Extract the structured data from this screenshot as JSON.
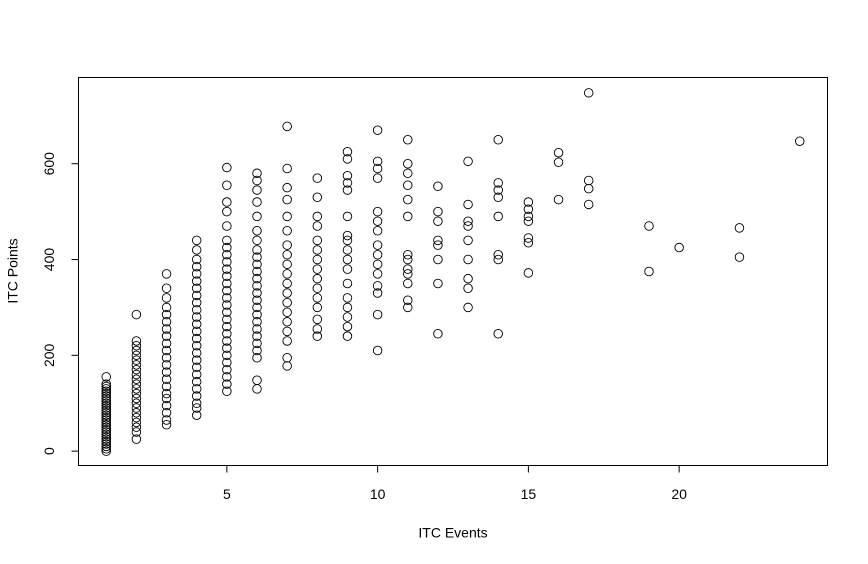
{
  "chart_data": {
    "type": "scatter",
    "x_label": "ITC Events",
    "y_label": "ITC Points",
    "x": [
      1,
      1,
      1,
      1,
      1,
      1,
      1,
      1,
      1,
      1,
      1,
      1,
      1,
      1,
      1,
      1,
      1,
      1,
      1,
      1,
      1,
      1,
      1,
      1,
      1,
      1,
      1,
      1,
      1,
      1,
      2,
      2,
      2,
      2,
      2,
      2,
      2,
      2,
      2,
      2,
      2,
      2,
      2,
      2,
      2,
      2,
      2,
      2,
      2,
      2,
      2,
      2,
      3,
      3,
      3,
      3,
      3,
      3,
      3,
      3,
      3,
      3,
      3,
      3,
      3,
      3,
      3,
      3,
      3,
      3,
      3,
      3,
      3,
      4,
      4,
      4,
      4,
      4,
      4,
      4,
      4,
      4,
      4,
      4,
      4,
      4,
      4,
      4,
      4,
      4,
      4,
      4,
      4,
      4,
      4,
      4,
      4,
      4,
      5,
      5,
      5,
      5,
      5,
      5,
      5,
      5,
      5,
      5,
      5,
      5,
      5,
      5,
      5,
      5,
      5,
      5,
      5,
      5,
      5,
      5,
      5,
      5,
      5,
      5,
      5,
      6,
      6,
      6,
      6,
      6,
      6,
      6,
      6,
      6,
      6,
      6,
      6,
      6,
      6,
      6,
      6,
      6,
      6,
      6,
      6,
      6,
      6,
      6,
      6,
      6,
      7,
      7,
      7,
      7,
      7,
      7,
      7,
      7,
      7,
      7,
      7,
      7,
      7,
      7,
      7,
      7,
      7,
      7,
      7,
      8,
      8,
      8,
      8,
      8,
      8,
      8,
      8,
      8,
      8,
      8,
      8,
      8,
      8,
      8,
      9,
      9,
      9,
      9,
      9,
      9,
      9,
      9,
      9,
      9,
      9,
      9,
      9,
      9,
      9,
      9,
      9,
      10,
      10,
      10,
      10,
      10,
      10,
      10,
      10,
      10,
      10,
      10,
      10,
      10,
      10,
      10,
      11,
      11,
      11,
      11,
      11,
      11,
      11,
      11,
      11,
      11,
      11,
      11,
      11,
      12,
      12,
      12,
      12,
      12,
      12,
      12,
      12,
      13,
      13,
      13,
      13,
      13,
      13,
      13,
      13,
      13,
      14,
      14,
      14,
      14,
      14,
      14,
      14,
      14,
      15,
      15,
      15,
      15,
      15,
      15,
      15,
      16,
      16,
      16,
      17,
      17,
      17,
      17,
      19,
      19,
      20,
      22,
      22,
      24
    ],
    "values": [
      0,
      5,
      10,
      15,
      20,
      25,
      30,
      35,
      40,
      45,
      50,
      55,
      60,
      65,
      70,
      75,
      80,
      85,
      90,
      95,
      100,
      105,
      110,
      115,
      120,
      125,
      130,
      135,
      140,
      155,
      25,
      40,
      50,
      60,
      70,
      80,
      90,
      100,
      110,
      120,
      130,
      140,
      150,
      160,
      170,
      180,
      190,
      200,
      210,
      220,
      230,
      285,
      55,
      65,
      80,
      95,
      110,
      120,
      135,
      150,
      165,
      180,
      195,
      210,
      225,
      240,
      255,
      270,
      285,
      300,
      320,
      340,
      370,
      75,
      90,
      100,
      115,
      130,
      145,
      160,
      175,
      190,
      205,
      220,
      235,
      250,
      265,
      280,
      295,
      310,
      325,
      340,
      355,
      370,
      385,
      400,
      420,
      440,
      125,
      140,
      155,
      170,
      185,
      200,
      215,
      230,
      245,
      260,
      275,
      290,
      305,
      320,
      335,
      350,
      365,
      380,
      395,
      410,
      425,
      440,
      470,
      500,
      520,
      555,
      592,
      130,
      148,
      195,
      210,
      225,
      240,
      255,
      270,
      285,
      300,
      315,
      330,
      345,
      360,
      375,
      390,
      405,
      420,
      440,
      460,
      490,
      520,
      545,
      565,
      580,
      178,
      195,
      230,
      250,
      270,
      290,
      310,
      330,
      350,
      370,
      390,
      410,
      430,
      460,
      490,
      525,
      550,
      590,
      678,
      240,
      255,
      275,
      300,
      320,
      340,
      360,
      380,
      400,
      420,
      440,
      470,
      490,
      530,
      570,
      240,
      260,
      280,
      300,
      320,
      350,
      380,
      400,
      420,
      440,
      450,
      490,
      545,
      560,
      575,
      610,
      625,
      210,
      285,
      330,
      345,
      370,
      390,
      410,
      430,
      460,
      480,
      500,
      570,
      590,
      605,
      670,
      300,
      315,
      350,
      370,
      380,
      400,
      410,
      490,
      525,
      555,
      580,
      600,
      650,
      245,
      350,
      400,
      430,
      440,
      480,
      500,
      553,
      300,
      340,
      360,
      400,
      440,
      470,
      480,
      515,
      605,
      245,
      400,
      410,
      490,
      530,
      545,
      560,
      650,
      372,
      435,
      445,
      480,
      490,
      505,
      520,
      525,
      603,
      623,
      515,
      548,
      565,
      748,
      375,
      470,
      425,
      405,
      466,
      647
    ],
    "xlim": [
      0.08,
      24.92
    ],
    "ylim": [
      -30,
      780
    ],
    "xticks": [
      5,
      10,
      15,
      20
    ],
    "yticks": [
      0,
      200,
      400,
      600
    ]
  }
}
